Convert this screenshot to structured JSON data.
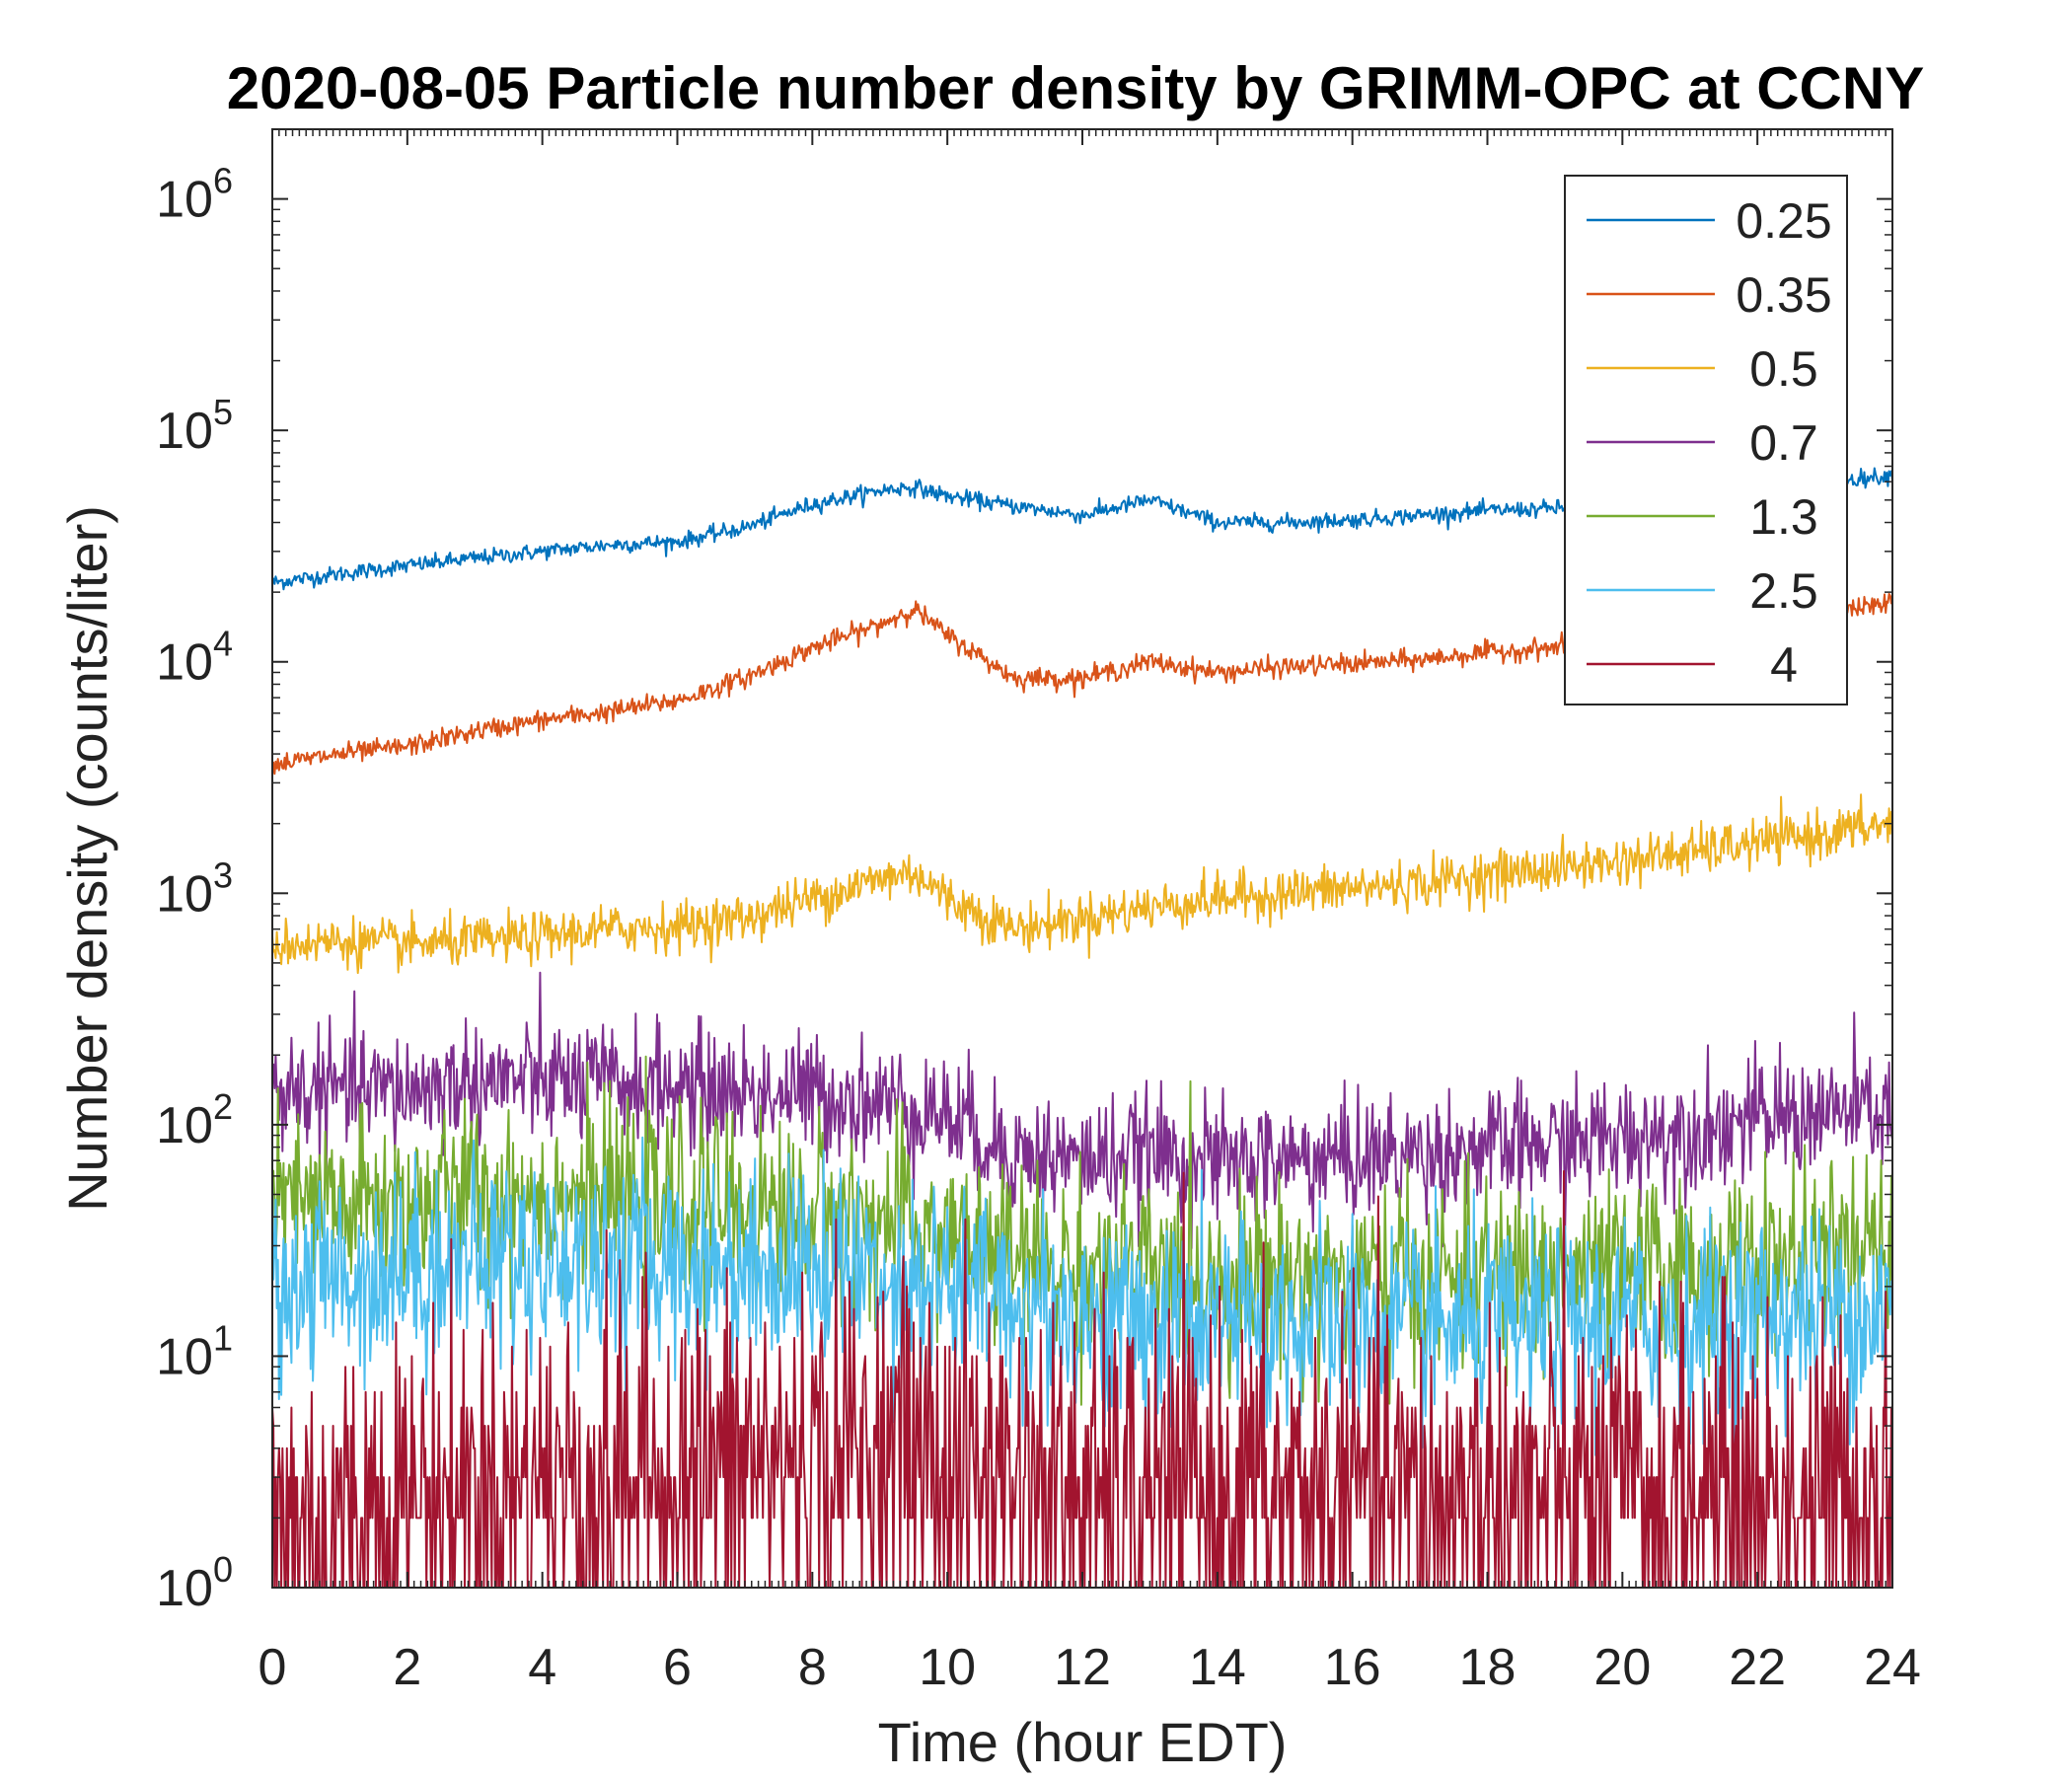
{
  "chart_data": {
    "type": "line",
    "title": "2020-08-05 Particle number density by GRIMM-OPC at CCNY",
    "xlabel": "Time (hour EDT)",
    "ylabel": "Number density (counts/liter)",
    "xlim": [
      0,
      24
    ],
    "ylim": [
      1,
      2000000
    ],
    "yscale": "log",
    "grid": false,
    "legend_position": "top-right",
    "x_ticks": [
      0,
      2,
      4,
      6,
      8,
      10,
      12,
      14,
      16,
      18,
      20,
      22,
      24
    ],
    "x_tick_labels": [
      "0",
      "2",
      "4",
      "6",
      "8",
      "10",
      "12",
      "14",
      "16",
      "18",
      "20",
      "22",
      "24"
    ],
    "y_ticks": [
      1,
      10,
      100,
      1000,
      10000,
      100000,
      1000000
    ],
    "y_tick_labels": [
      {
        "base": "10",
        "exp": "0"
      },
      {
        "base": "10",
        "exp": "1"
      },
      {
        "base": "10",
        "exp": "2"
      },
      {
        "base": "10",
        "exp": "3"
      },
      {
        "base": "10",
        "exp": "4"
      },
      {
        "base": "10",
        "exp": "5"
      },
      {
        "base": "10",
        "exp": "6"
      }
    ],
    "x": [
      0,
      1,
      2,
      3,
      4,
      5,
      6,
      7,
      8,
      9,
      9.5,
      10,
      11,
      12,
      13,
      14,
      15,
      16,
      17,
      18,
      19,
      20,
      21,
      22,
      23,
      24
    ],
    "series": [
      {
        "name": "0.25",
        "color": "#0072BD",
        "noise": 0.04,
        "values": [
          22000,
          24000,
          26000,
          28000,
          30000,
          32000,
          33000,
          38000,
          48000,
          55000,
          57000,
          52000,
          47000,
          43000,
          50000,
          40000,
          40000,
          41000,
          43000,
          45000,
          46000,
          48000,
          52000,
          56000,
          60000,
          64000
        ]
      },
      {
        "name": "0.35",
        "color": "#D95319",
        "noise": 0.05,
        "values": [
          3600,
          4000,
          4300,
          5000,
          5600,
          6100,
          6800,
          8500,
          11500,
          14500,
          17000,
          13000,
          8500,
          8500,
          10000,
          9000,
          9500,
          9800,
          10200,
          11000,
          11500,
          12500,
          13500,
          15000,
          16500,
          18000
        ]
      },
      {
        "name": "0.5",
        "color": "#EDB120",
        "noise": 0.12,
        "values": [
          600,
          620,
          600,
          620,
          650,
          700,
          720,
          780,
          950,
          1150,
          1250,
          950,
          700,
          780,
          870,
          950,
          1000,
          1050,
          1100,
          1200,
          1280,
          1380,
          1500,
          1650,
          1800,
          2000
        ]
      },
      {
        "name": "0.7",
        "color": "#7E2F8E",
        "noise": 0.3,
        "values": [
          140,
          140,
          140,
          155,
          155,
          150,
          145,
          140,
          135,
          125,
          120,
          110,
          75,
          70,
          75,
          68,
          70,
          72,
          75,
          78,
          82,
          88,
          95,
          105,
          112,
          115
        ]
      },
      {
        "name": "1.3",
        "color": "#77AC30",
        "noise": 0.45,
        "values": [
          45,
          44,
          46,
          50,
          50,
          48,
          46,
          44,
          42,
          38,
          36,
          33,
          26,
          24,
          23,
          22,
          22,
          22,
          22,
          22,
          22,
          23,
          24,
          25,
          26,
          28
        ]
      },
      {
        "name": "2.5",
        "color": "#4DBEEE",
        "noise": 0.5,
        "values": [
          20,
          22,
          24,
          26,
          27,
          26,
          25,
          25,
          24,
          23,
          22,
          20,
          17,
          15,
          14,
          14,
          14,
          14,
          13,
          13,
          13,
          14,
          14,
          15,
          15,
          16
        ]
      },
      {
        "name": "4",
        "color": "#A2142F",
        "noise": 0.9,
        "values": [
          2,
          2,
          2.5,
          2.5,
          3,
          3,
          3,
          3.5,
          3.5,
          4,
          4,
          3.5,
          3,
          2.5,
          2.5,
          2.5,
          2.5,
          2.5,
          2.5,
          2.5,
          2.5,
          2.5,
          2.5,
          2.5,
          2.5,
          2.5
        ]
      }
    ]
  }
}
